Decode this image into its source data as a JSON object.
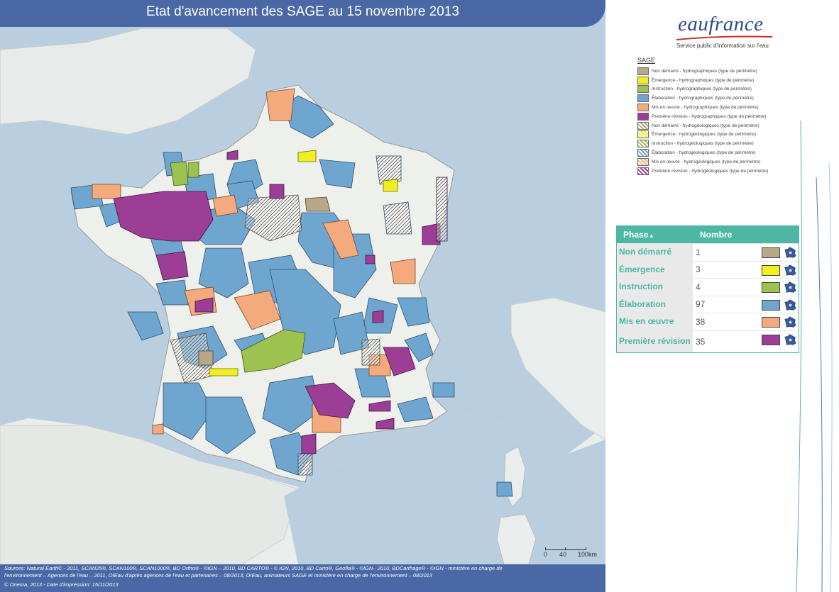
{
  "map": {
    "title": "Etat d'avancement des SAGE au 15 novembre 2013",
    "scale_labels": [
      "0",
      "40",
      "100km"
    ]
  },
  "logo": {
    "name": "eaufrance",
    "tagline": "Service public d'information sur l'eau"
  },
  "legend": {
    "title": "SAGE",
    "items": [
      {
        "label": "Non démarré - hydrographiques (type de périmètre)",
        "color": "#b8a88a",
        "pattern": "solid"
      },
      {
        "label": "Émergence - hydrographiques (type de périmètre)",
        "color": "#f0f020",
        "pattern": "solid"
      },
      {
        "label": "Instruction - hydrographiques (type de périmètre)",
        "color": "#9dc24f",
        "pattern": "solid"
      },
      {
        "label": "Élaboration - hydrographiques (type de périmètre)",
        "color": "#6fa6cf",
        "pattern": "solid"
      },
      {
        "label": "Mis en œuvre - hydrographiques (type de périmètre)",
        "color": "#f4aa7c",
        "pattern": "solid"
      },
      {
        "label": "Première révision - hydrographiques (type de périmètre)",
        "color": "#9c3e96",
        "pattern": "solid"
      },
      {
        "label": "Non démarré - hydrogéologiques (type de périmètre)",
        "color": "#b8a88a",
        "pattern": "hatch"
      },
      {
        "label": "Émergence - hydrogéologiques (type de périmètre)",
        "color": "#f0f020",
        "pattern": "hatch"
      },
      {
        "label": "Instruction - hydrogéologiques (type de périmètre)",
        "color": "#9dc24f",
        "pattern": "hatch"
      },
      {
        "label": "Élaboration - hydrogéologiques (type de périmètre)",
        "color": "#6fa6cf",
        "pattern": "hatch"
      },
      {
        "label": "Mis en œuvre - hydrogéologiques (type de périmètre)",
        "color": "#f4aa7c",
        "pattern": "hatch"
      },
      {
        "label": "Première révision - hydrogéologiques (type de périmètre)",
        "color": "#9c3e96",
        "pattern": "hatch"
      }
    ]
  },
  "table": {
    "headers": {
      "phase": "Phase",
      "count": "Nombre"
    },
    "rows": [
      {
        "phase": "Non démarré",
        "count": "1",
        "color": "#b8a88a"
      },
      {
        "phase": "Émergence",
        "count": "3",
        "color": "#f0f020"
      },
      {
        "phase": "Instruction",
        "count": "4",
        "color": "#9dc24f"
      },
      {
        "phase": "Élaboration",
        "count": "97",
        "color": "#6fa6cf"
      },
      {
        "phase": "Mis en œuvre",
        "count": "38",
        "color": "#f4aa7c"
      },
      {
        "phase": "Première révision",
        "count": "35",
        "color": "#9c3e96"
      }
    ]
  },
  "footer": {
    "line1": "Sources: Natural Earth© - 2011, SCAN25®, SCAN100®, SCAN1000®, BD Ortho® - ©IGN – 2010, BD CARTO® - © IGN, 2010, BD Carto®, Geofla® - ©IGN– 2010, BDCarthage® - ©IGN - ministère en charge de",
    "line2": "l'environnement – Agences de l'eau – 2011, OIEau d'après agences de l'eau et partenaires – 08/2013, OIEau, animateurs SAGE et ministère en charge de l'environnement – 08/2013",
    "line3": "© Onema, 2013 - Date d'impression: 15/11/2013"
  },
  "icons": {
    "map_marker": "france-map-icon",
    "sort": "sort-up-icon"
  }
}
